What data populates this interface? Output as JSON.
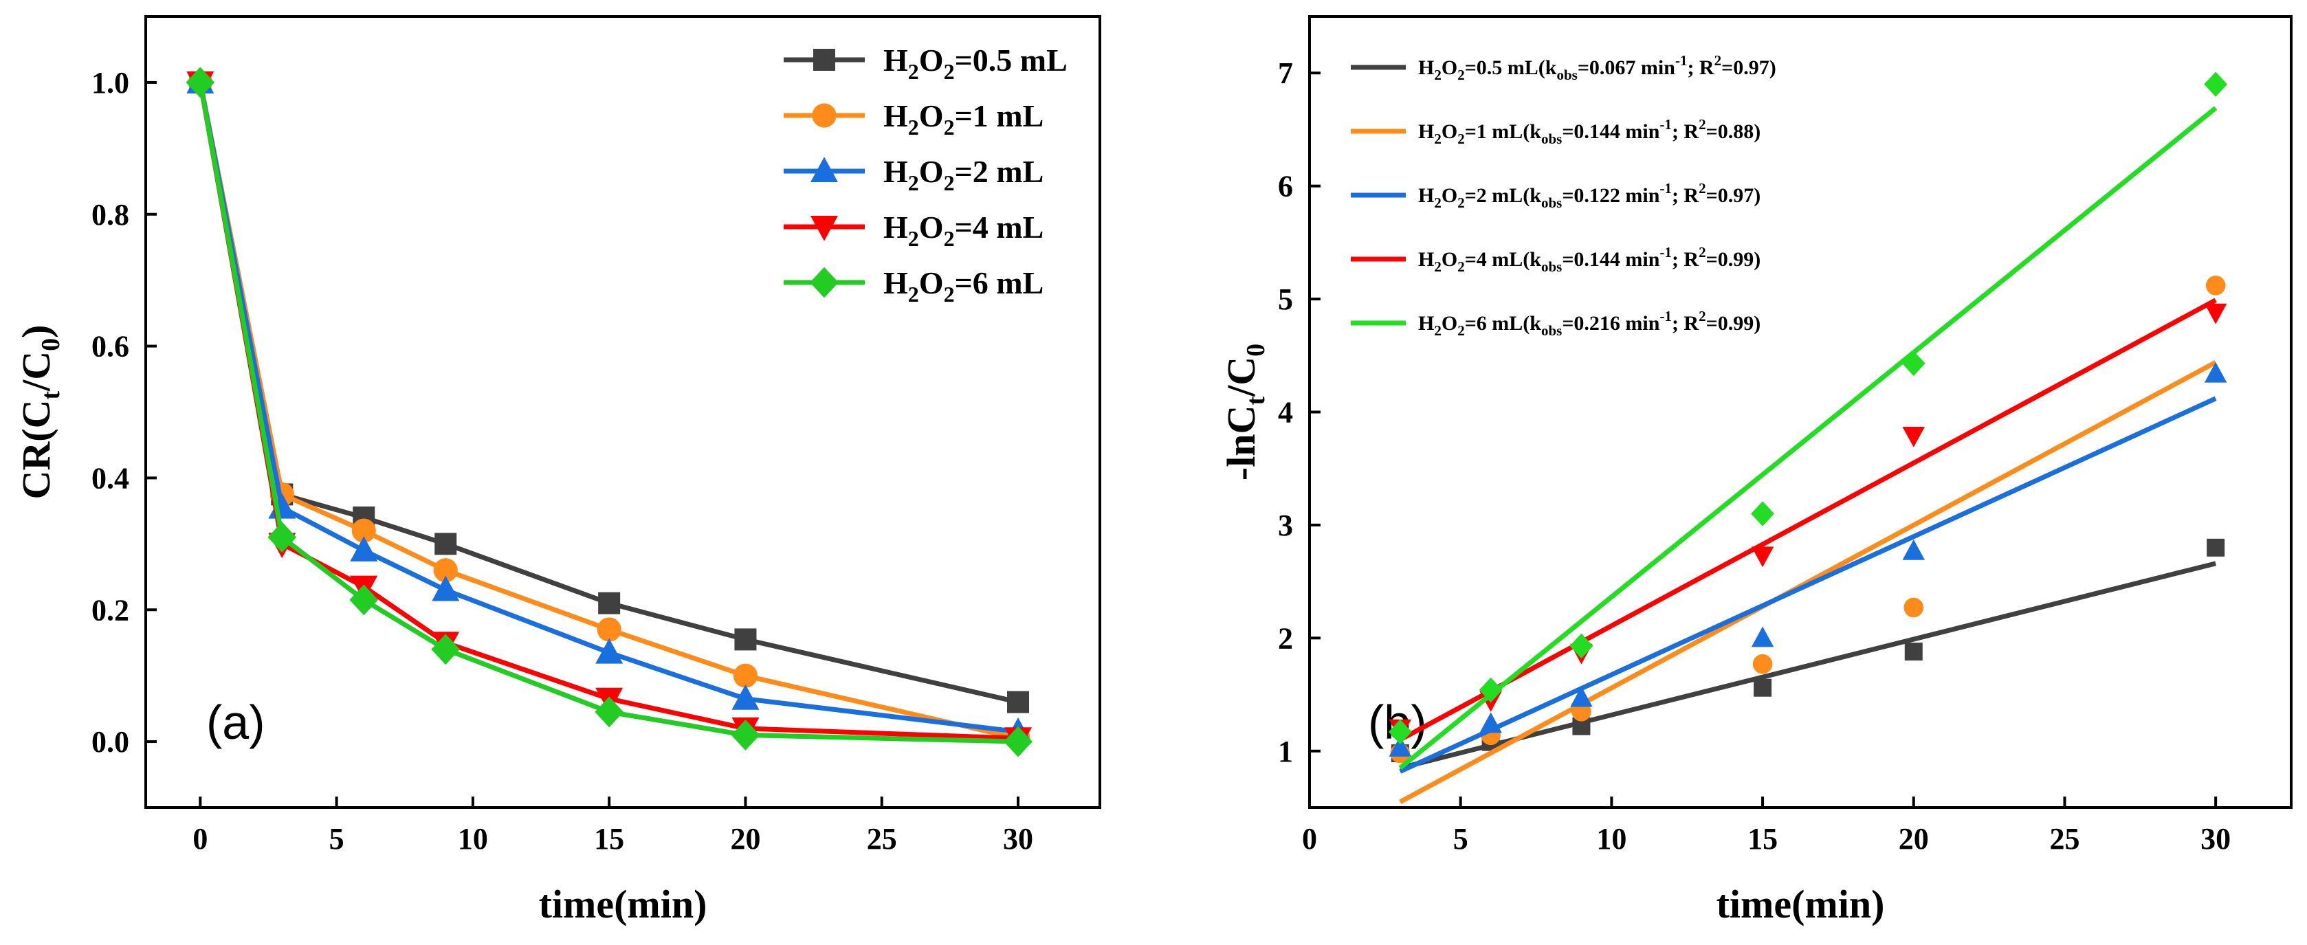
{
  "chart_data": [
    {
      "type": "line",
      "panel_label": "(a)",
      "xlabel": "time(min)",
      "ylabel": "CR(Ct/C0)",
      "ylabel_parts": {
        "main": "CR(C",
        "sub1": "t",
        "mid": "/C",
        "sub2": "0",
        "end": ")"
      },
      "xlim": [
        -2,
        33
      ],
      "ylim": [
        -0.1,
        1.1
      ],
      "xticks": [
        0,
        5,
        10,
        15,
        20,
        25,
        30
      ],
      "xtick_labels": [
        "0",
        "5",
        "10",
        "15",
        "20",
        "25",
        "30"
      ],
      "yticks": [
        0.0,
        0.2,
        0.4,
        0.6,
        0.8,
        1.0
      ],
      "ytick_labels": [
        "0.0",
        "0.2",
        "0.4",
        "0.6",
        "0.8",
        "1.0"
      ],
      "legend_position": "top-right",
      "series": [
        {
          "name": "H2O2=0.5 mL",
          "label_parts": [
            "H",
            "2",
            "O",
            "2",
            "=0.5 mL"
          ],
          "color": "#404040",
          "marker": "square",
          "x": [
            0,
            3,
            6,
            9,
            15,
            20,
            30
          ],
          "values": [
            1.0,
            0.375,
            0.34,
            0.3,
            0.21,
            0.155,
            0.06
          ]
        },
        {
          "name": "H2O2=1 mL",
          "label_parts": [
            "H",
            "2",
            "O",
            "2",
            "=1 mL"
          ],
          "color": "#ff8c1a",
          "marker": "circle",
          "x": [
            0,
            3,
            6,
            9,
            15,
            20,
            30
          ],
          "values": [
            1.0,
            0.375,
            0.32,
            0.26,
            0.17,
            0.1,
            0.005
          ]
        },
        {
          "name": "H2O2=2 mL",
          "label_parts": [
            "H",
            "2",
            "O",
            "2",
            "=2 mL"
          ],
          "color": "#1a6fdf",
          "marker": "triangle-up",
          "x": [
            0,
            3,
            6,
            9,
            15,
            20,
            30
          ],
          "values": [
            1.0,
            0.355,
            0.29,
            0.23,
            0.135,
            0.065,
            0.015
          ]
        },
        {
          "name": "H2O2=4 mL",
          "label_parts": [
            "H",
            "2",
            "O",
            "2",
            "=4 mL"
          ],
          "color": "#ff0000",
          "marker": "triangle-down",
          "x": [
            0,
            3,
            6,
            9,
            15,
            20,
            30
          ],
          "values": [
            1.0,
            0.3,
            0.235,
            0.15,
            0.065,
            0.02,
            0.005
          ]
        },
        {
          "name": "H2O2=6 mL",
          "label_parts": [
            "H",
            "2",
            "O",
            "2",
            "=6 mL"
          ],
          "color": "#22cc22",
          "marker": "diamond",
          "x": [
            0,
            3,
            6,
            9,
            15,
            20,
            30
          ],
          "values": [
            1.0,
            0.31,
            0.215,
            0.14,
            0.045,
            0.01,
            0.0
          ]
        }
      ]
    },
    {
      "type": "scatter",
      "panel_label": "(b)",
      "xlabel": "time(min)",
      "ylabel": "-lnCt/C0",
      "ylabel_parts": {
        "main": "-lnC",
        "sub1": "t",
        "mid": "/C",
        "sub2": "0",
        "end": ""
      },
      "xlim": [
        0,
        32.5
      ],
      "ylim": [
        0.5,
        7.5
      ],
      "xticks": [
        0,
        5,
        10,
        15,
        20,
        25,
        30
      ],
      "xtick_labels": [
        "0",
        "5",
        "10",
        "15",
        "20",
        "25",
        "30"
      ],
      "yticks": [
        1,
        2,
        3,
        4,
        5,
        6,
        7
      ],
      "ytick_labels": [
        "1",
        "2",
        "3",
        "4",
        "5",
        "6",
        "7"
      ],
      "legend_position": "top-left",
      "series": [
        {
          "name": "H2O2=0.5 mL(kobs=0.067 min-1; R2=0.97)",
          "label_parts": {
            "a": "H",
            "b": "2",
            "c": "O",
            "d": "2",
            "e": "=0.5 mL(k",
            "f": "obs",
            "g": "=0.067 min",
            "h": "-1",
            "i": "; R",
            "j": "2",
            "k": "=0.97)"
          },
          "color": "#404040",
          "marker": "square",
          "x": [
            3,
            6,
            9,
            15,
            20,
            30
          ],
          "values": [
            0.98,
            1.08,
            1.22,
            1.56,
            1.88,
            2.8
          ],
          "fit_x": [
            3,
            30
          ],
          "fit_y": [
            0.85,
            2.66
          ]
        },
        {
          "name": "H2O2=1 mL(kobs=0.144 min-1; R2=0.88)",
          "label_parts": {
            "a": "H",
            "b": "2",
            "c": "O",
            "d": "2",
            "e": "=1 mL(k",
            "f": "obs",
            "g": "=0.144 min",
            "h": "-1",
            "i": "; R",
            "j": "2",
            "k": "=0.88)"
          },
          "color": "#ff8c1a",
          "marker": "circle",
          "x": [
            3,
            6,
            9,
            15,
            20,
            30
          ],
          "values": [
            0.98,
            1.14,
            1.35,
            1.77,
            2.27,
            5.12
          ],
          "fit_x": [
            3,
            30
          ],
          "fit_y": [
            0.55,
            4.44
          ]
        },
        {
          "name": "H2O2=2 mL(kobs=0.122 min-1; R2=0.97)",
          "label_parts": {
            "a": "H",
            "b": "2",
            "c": "O",
            "d": "2",
            "e": "=2 mL(k",
            "f": "obs",
            "g": "=0.122 min",
            "h": "-1",
            "i": "; R",
            "j": "2",
            "k": "=0.97)"
          },
          "color": "#1a6fdf",
          "marker": "triangle-up",
          "x": [
            3,
            6,
            9,
            15,
            20,
            30
          ],
          "values": [
            1.03,
            1.24,
            1.47,
            2.0,
            2.77,
            4.34
          ],
          "fit_x": [
            3,
            30
          ],
          "fit_y": [
            0.82,
            4.12
          ]
        },
        {
          "name": "H2O2=4 mL(kobs=0.144 min-1; R2=0.99)",
          "label_parts": {
            "a": "H",
            "b": "2",
            "c": "O",
            "d": "2",
            "e": "=4 mL(k",
            "f": "obs",
            "g": "=0.144 min",
            "h": "-1",
            "i": "; R",
            "j": "2",
            "k": "=0.99)"
          },
          "color": "#ff0000",
          "marker": "triangle-down",
          "x": [
            3,
            6,
            9,
            15,
            20,
            30
          ],
          "values": [
            1.2,
            1.45,
            1.87,
            2.73,
            3.79,
            4.88
          ],
          "fit_x": [
            3,
            30
          ],
          "fit_y": [
            1.1,
            4.99
          ]
        },
        {
          "name": "H2O2=6 mL(kobs=0.216 min-1; R2=0.99)",
          "label_parts": {
            "a": "H",
            "b": "2",
            "c": "O",
            "d": "2",
            "e": "=6 mL(k",
            "f": "obs",
            "g": "=0.216 min",
            "h": "-1",
            "i": "; R",
            "j": "2",
            "k": "=0.99)"
          },
          "color": "#22dd22",
          "marker": "diamond",
          "x": [
            3,
            6,
            9,
            15,
            20,
            30
          ],
          "values": [
            1.17,
            1.54,
            1.93,
            3.1,
            4.43,
            6.9
          ],
          "fit_x": [
            3,
            30
          ],
          "fit_y": [
            0.85,
            6.69
          ]
        }
      ]
    }
  ]
}
